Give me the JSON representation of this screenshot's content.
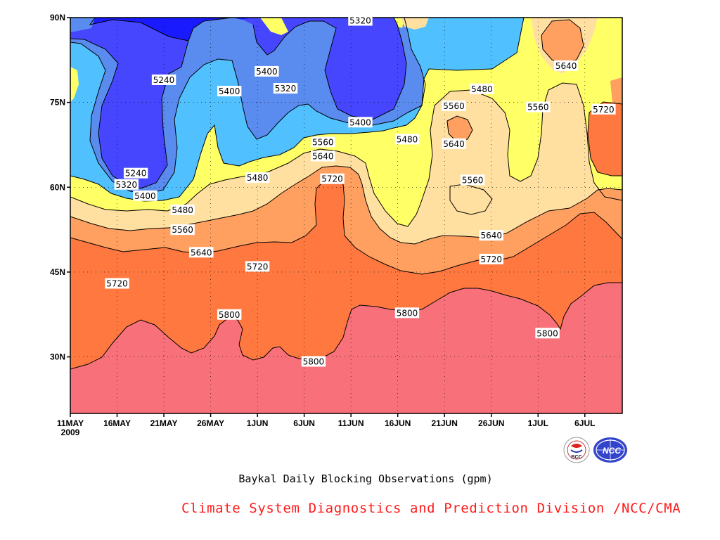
{
  "chart_data": {
    "type": "heatmap",
    "title": "Baykal Daily Blocking Observations (gpm)",
    "x_tick_labels": [
      "11MAY",
      "16MAY",
      "21MAY",
      "26MAY",
      "1JUN",
      "6JUN",
      "11JUN",
      "16JUN",
      "21JUN",
      "26JUN",
      "1JUL",
      "6JUL"
    ],
    "x_year_label": "2009",
    "x_range": [
      "2009-05-11",
      "2009-07-09"
    ],
    "y_tick_labels": [
      "30N",
      "45N",
      "60N",
      "75N",
      "90N"
    ],
    "y_ticks": [
      30,
      45,
      60,
      75,
      90
    ],
    "ylim": [
      20,
      90
    ],
    "contour_levels": [
      5240,
      5320,
      5400,
      5480,
      5560,
      5640,
      5720,
      5800
    ],
    "colors": {
      "below_5240": "#1a1aff",
      "5240_5320": "#4646ff",
      "5320_5400": "#5a8cf0",
      "5400_5480": "#50c0ff",
      "5480_5560": "#ffff66",
      "5560_5640": "#ffe0a0",
      "5640_5720": "#ffa060",
      "5720_5800": "#ff7840",
      "above_5800": "#f8707a"
    },
    "contour_labels": [
      {
        "date": "2009-05-21",
        "lat": 79,
        "text": "5240"
      },
      {
        "date": "2009-05-18",
        "lat": 62.5,
        "text": "5240"
      },
      {
        "date": "2009-05-17",
        "lat": 60.5,
        "text": "5320"
      },
      {
        "date": "2009-05-19",
        "lat": 58.5,
        "text": "5400"
      },
      {
        "date": "2009-05-23",
        "lat": 56,
        "text": "5480"
      },
      {
        "date": "2009-05-23",
        "lat": 52.5,
        "text": "5560"
      },
      {
        "date": "2009-05-25",
        "lat": 48.5,
        "text": "5640"
      },
      {
        "date": "2009-05-16",
        "lat": 43,
        "text": "5720"
      },
      {
        "date": "2009-05-31",
        "lat": 46,
        "text": "5720"
      },
      {
        "date": "2009-05-28",
        "lat": 77,
        "text": "5400"
      },
      {
        "date": "2009-06-01",
        "lat": 80.5,
        "text": "5400"
      },
      {
        "date": "2009-06-03",
        "lat": 77.5,
        "text": "5320"
      },
      {
        "date": "2009-06-11",
        "lat": 89.5,
        "text": "5320"
      },
      {
        "date": "2009-06-11",
        "lat": 71.5,
        "text": "5400"
      },
      {
        "date": "2009-06-16",
        "lat": 68.5,
        "text": "5480"
      },
      {
        "date": "2009-06-07",
        "lat": 68,
        "text": "5560"
      },
      {
        "date": "2009-06-07",
        "lat": 65.5,
        "text": "5640"
      },
      {
        "date": "2009-06-08",
        "lat": 61.5,
        "text": "5720"
      },
      {
        "date": "2009-05-31",
        "lat": 61.7,
        "text": "5480"
      },
      {
        "date": "2009-05-28",
        "lat": 37.5,
        "text": "5800"
      },
      {
        "date": "2009-06-06",
        "lat": 29.2,
        "text": "5800"
      },
      {
        "date": "2009-06-16",
        "lat": 37.8,
        "text": "5800"
      },
      {
        "date": "2009-06-21",
        "lat": 74.4,
        "text": "5560"
      },
      {
        "date": "2009-06-24",
        "lat": 77.4,
        "text": "5480"
      },
      {
        "date": "2009-06-21",
        "lat": 67.7,
        "text": "5640"
      },
      {
        "date": "2009-06-23",
        "lat": 61.3,
        "text": "5560"
      },
      {
        "date": "2009-06-25",
        "lat": 51.5,
        "text": "5640"
      },
      {
        "date": "2009-06-25",
        "lat": 47.3,
        "text": "5720"
      },
      {
        "date": "2009-06-30",
        "lat": 74.2,
        "text": "5560"
      },
      {
        "date": "2009-07-03",
        "lat": 81.5,
        "text": "5640"
      },
      {
        "date": "2009-07-07",
        "lat": 73.8,
        "text": "5720"
      },
      {
        "date": "2009-07-01",
        "lat": 34.2,
        "text": "5800"
      }
    ]
  },
  "caption": "Baykal Daily Blocking Observations (gpm)",
  "credit": "Climate System Diagnostics and Prediction Division /NCC/CMA",
  "logos": {
    "bcc": "BCC",
    "ncc": "NCC"
  }
}
